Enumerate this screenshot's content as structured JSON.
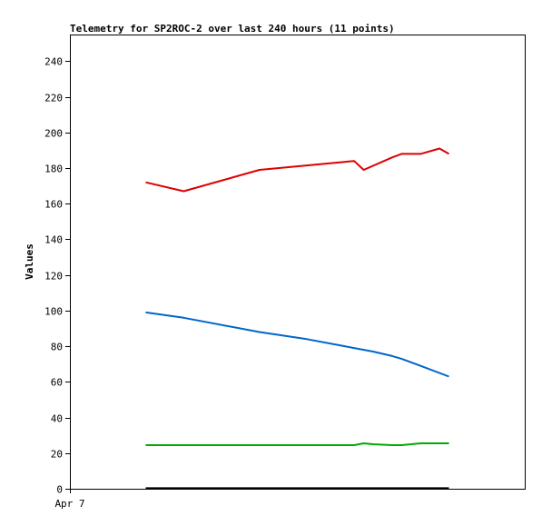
{
  "chart_data": {
    "type": "line",
    "title": "Telemetry for SP2ROC-2 over last 240 hours (11 points)",
    "xlabel": "",
    "ylabel": "Values",
    "x_tick_labels": [
      "Apr 7"
    ],
    "y_ticks": [
      0,
      20,
      40,
      60,
      80,
      100,
      120,
      140,
      160,
      180,
      200,
      220,
      240
    ],
    "ylim": [
      0,
      255
    ],
    "grid": false,
    "legend": "none",
    "x_note": "x values are hours relative to the Apr 7 tick",
    "xlim": [
      0,
      240
    ],
    "series": [
      {
        "color": "#dd0000",
        "x": [
          40,
          60,
          100,
          150,
          155,
          170,
          175,
          185,
          195,
          200
        ],
        "values": [
          172,
          167,
          179,
          184,
          179,
          186,
          188,
          188,
          191,
          188
        ]
      },
      {
        "color": "#0066cc",
        "x": [
          40,
          60,
          100,
          125,
          150,
          160,
          170,
          175,
          185,
          200
        ],
        "values": [
          99,
          96,
          88,
          84,
          79,
          77,
          74.5,
          73,
          69,
          63
        ]
      },
      {
        "color": "#00aa00",
        "x": [
          40,
          60,
          100,
          150,
          155,
          160,
          170,
          175,
          185,
          200
        ],
        "values": [
          24.5,
          24.5,
          24.5,
          24.5,
          25.5,
          25,
          24.5,
          24.5,
          25.5,
          25.5
        ]
      },
      {
        "color": "#000000",
        "x": [
          40,
          200
        ],
        "values": [
          0.3,
          0.3
        ]
      }
    ]
  }
}
